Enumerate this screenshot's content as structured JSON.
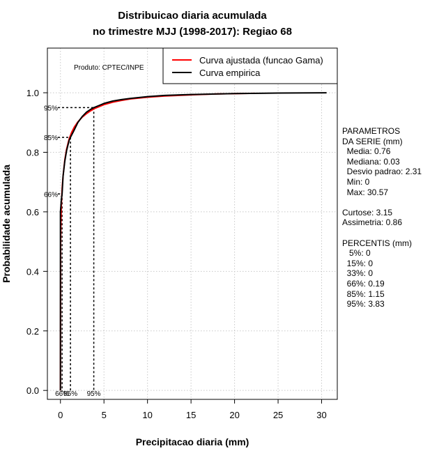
{
  "chart_data": {
    "type": "line",
    "title": [
      "Distribuicao diaria acumulada",
      "no trimestre MJJ (1998-2017): Regiao 68"
    ],
    "xlabel": "Precipitacao diaria (mm)",
    "ylabel": "Probabilidade acumulada",
    "xlim": [
      -1.5,
      31.8
    ],
    "ylim": [
      -0.03,
      1.15
    ],
    "xticks": [
      0,
      5,
      10,
      15,
      20,
      25,
      30
    ],
    "yticks": [
      "0.0",
      "0.2",
      "0.4",
      "0.6",
      "0.8",
      "1.0"
    ],
    "grid": true,
    "product_label": "Produto: CPTEC/INPE",
    "legend_position": "top-right",
    "series": [
      {
        "name": "Curva ajustada (funcao Gama)",
        "color": "#ff0000",
        "x": [
          0.0,
          0.02,
          0.05,
          0.1,
          0.2,
          0.3,
          0.5,
          0.7,
          1.0,
          1.3,
          1.6,
          2.0,
          2.5,
          3.0,
          3.5,
          4.0,
          5.0,
          6.0,
          7.0,
          8.0,
          10.0,
          12.0,
          15.0,
          18.0,
          22.3
        ],
        "y": [
          0.0,
          0.49,
          0.56,
          0.62,
          0.68,
          0.72,
          0.775,
          0.81,
          0.845,
          0.868,
          0.885,
          0.902,
          0.918,
          0.93,
          0.94,
          0.948,
          0.96,
          0.968,
          0.974,
          0.979,
          0.985,
          0.989,
          0.993,
          0.996,
          0.998
        ]
      },
      {
        "name": "Curva empirica",
        "color": "#000000",
        "x": [
          0.0,
          0.0,
          0.05,
          0.1,
          0.19,
          0.3,
          0.5,
          0.7,
          1.0,
          1.15,
          1.5,
          2.0,
          2.5,
          3.0,
          3.5,
          3.83,
          4.5,
          5.0,
          6.0,
          7.0,
          8.0,
          10.0,
          12.0,
          15.0,
          20.0,
          25.0,
          30.57
        ],
        "y": [
          0.0,
          0.6,
          0.62,
          0.64,
          0.66,
          0.72,
          0.77,
          0.805,
          0.84,
          0.85,
          0.87,
          0.9,
          0.92,
          0.935,
          0.945,
          0.95,
          0.958,
          0.964,
          0.972,
          0.977,
          0.981,
          0.987,
          0.991,
          0.994,
          0.997,
          0.999,
          1.0
        ]
      }
    ],
    "percentile_markers": [
      {
        "label": "66%",
        "x": 0.19,
        "y": 0.66
      },
      {
        "label": "85%",
        "x": 1.15,
        "y": 0.85
      },
      {
        "label": "95%",
        "x": 3.83,
        "y": 0.95
      }
    ]
  },
  "side_panel": {
    "lines": [
      "PARAMETROS",
      "DA SERIE (mm)",
      "  Media: 0.76",
      "  Mediana: 0.03",
      "  Desvio padrao: 2.31",
      "  Min: 0",
      "  Max: 30.57",
      "",
      "Curtose: 3.15",
      "Assimetria: 0.86",
      "",
      "PERCENTIS (mm)",
      "   5%: 0",
      "  15%: 0",
      "  33%: 0",
      "  66%: 0.19",
      "  85%: 1.15",
      "  95%: 3.83"
    ]
  }
}
